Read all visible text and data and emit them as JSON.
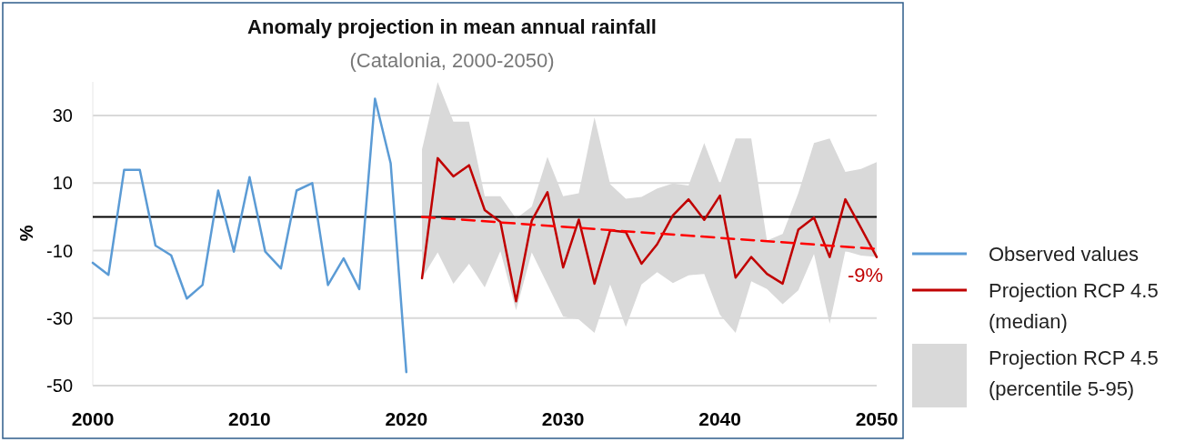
{
  "chart_data": {
    "type": "line",
    "title": "Anomaly projection in mean annual rainfall",
    "subtitle": "(Catalonia, 2000-2050)",
    "ylabel": "%",
    "xlim": [
      2000,
      2050
    ],
    "xticks": [
      2000,
      2010,
      2020,
      2030,
      2040,
      2050
    ],
    "ylim": [
      -50,
      40
    ],
    "yticks": [
      -50,
      -30,
      -10,
      10,
      30
    ],
    "grid": "y",
    "legend": "right",
    "marker": "none",
    "ref_lines": [
      {
        "axis": "y",
        "value": 0,
        "color": "#000000"
      }
    ],
    "annotations": [
      {
        "text": "-9%",
        "x": 2050,
        "y": -9.5
      },
      "Projection RCP 4.5 (percentile 5-95)"
    ],
    "series": [
      {
        "name": "Observed values",
        "type": "line",
        "color": "#5b9bd5",
        "x": [
          2000,
          2001,
          2002,
          2003,
          2004,
          2005,
          2006,
          2007,
          2008,
          2009,
          2010,
          2011,
          2012,
          2013,
          2014,
          2015,
          2016,
          2017,
          2018,
          2019,
          2020
        ],
        "values": [
          -13.6,
          -17.2,
          13.9,
          13.9,
          -8.5,
          -11.4,
          -24.2,
          -20.2,
          7.8,
          -10.3,
          11.8,
          -10.3,
          -15.3,
          7.8,
          10,
          -20.2,
          -12.3,
          -21.4,
          35,
          15.9,
          -46
        ]
      },
      {
        "name": "Projection RCP 4.5 (median)",
        "type": "line",
        "color": "#c00000",
        "x": [
          2021,
          2022,
          2023,
          2024,
          2025,
          2026,
          2027,
          2028,
          2029,
          2030,
          2031,
          2032,
          2033,
          2034,
          2035,
          2036,
          2037,
          2038,
          2039,
          2040,
          2041,
          2042,
          2043,
          2044,
          2045,
          2046,
          2047,
          2048,
          2049,
          2050
        ],
        "values": [
          -18.2,
          17.4,
          12,
          15.3,
          2,
          -1.5,
          -25,
          -1.1,
          7.3,
          -15,
          -0.8,
          -19.8,
          -4,
          -4.5,
          -13.9,
          -8.1,
          0.4,
          5.2,
          -0.9,
          6.3,
          -18,
          -11.9,
          -16.9,
          -19.8,
          -3.8,
          -0.2,
          -11.9,
          5.2,
          -3.3,
          -11.9
        ],
        "lower": [
          -18.2,
          -10.5,
          -19.8,
          -13.9,
          -20.9,
          -10.1,
          -27.7,
          -10.5,
          -20,
          -29.5,
          -30.4,
          -34.4,
          -20,
          -32.6,
          -20,
          -16.4,
          -19.6,
          -17.3,
          -16.9,
          -29,
          -34.4,
          -19.1,
          -21.4,
          -25.9,
          -21.8,
          -11,
          -31.7,
          -10.1,
          -11.5,
          -11.9
        ],
        "upper": [
          20,
          39.9,
          28.2,
          28.2,
          6.1,
          6.1,
          -0.5,
          3,
          17.8,
          6.1,
          7,
          29.5,
          9.7,
          5.4,
          5.9,
          8.4,
          9.9,
          9.3,
          21.9,
          9.7,
          23.2,
          23.2,
          -7,
          -5.1,
          7,
          21.9,
          23.2,
          13.3,
          14.2,
          16.2
        ]
      },
      {
        "type": "line",
        "color": "#ff0000",
        "line_style": "dashed",
        "x": [
          2021,
          2050
        ],
        "values": [
          0,
          -9.5
        ]
      }
    ]
  }
}
